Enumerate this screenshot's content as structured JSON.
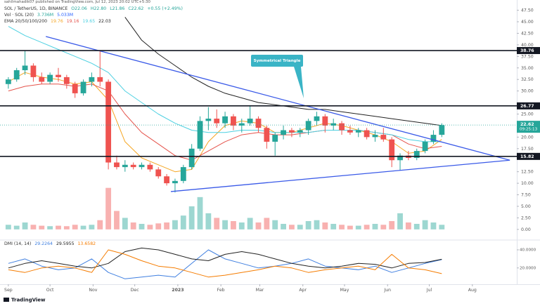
{
  "chart_data": {
    "type": "candlestick",
    "attribution": "sahilmahadik07 published on TradingView.com, Jul 12, 2023 20:02 UTC+5:30",
    "title": "SOL / TetherUS, 1D, BINANCE",
    "ohlc_legend": [
      "O22.06",
      "H22.80",
      "L21.86",
      "C22.62",
      "+0.55 (+2.49%)"
    ],
    "volume_legend": {
      "label": "Vol · SOL (20)",
      "values": [
        "3.736M",
        "5.033M"
      ]
    },
    "ema_legend": {
      "label": "EMA 20/50/100/200",
      "values": [
        "19.76",
        "19.16",
        "19.65",
        "22.03"
      ]
    },
    "logo": "TradingView",
    "xlim": [
      -6,
      366
    ],
    "xticks": [
      {
        "value": 0,
        "label": "Sep"
      },
      {
        "value": 30,
        "label": "Oct"
      },
      {
        "value": 61,
        "label": "Nov"
      },
      {
        "value": 91,
        "label": "Dec"
      },
      {
        "value": 122,
        "label": "2023"
      },
      {
        "value": 153,
        "label": "Feb"
      },
      {
        "value": 181,
        "label": "Mar"
      },
      {
        "value": 212,
        "label": "Apr"
      },
      {
        "value": 242,
        "label": "May"
      },
      {
        "value": 273,
        "label": "Jun"
      },
      {
        "value": 303,
        "label": "Jul"
      },
      {
        "value": 334,
        "label": "Aug"
      }
    ],
    "ylim": [
      -2,
      48.5
    ],
    "yticks": [
      {
        "value": 0,
        "label": "0.00"
      },
      {
        "value": 2.5,
        "label": "2.50"
      },
      {
        "value": 5,
        "label": "5.00"
      },
      {
        "value": 7.5,
        "label": "7.50"
      },
      {
        "value": 10,
        "label": "10.00"
      },
      {
        "value": 12.5,
        "label": "12.50"
      },
      {
        "value": 17.5,
        "label": "17.50"
      },
      {
        "value": 20,
        "label": "20.00"
      },
      {
        "value": 25,
        "label": "25.00"
      },
      {
        "value": 30,
        "label": "30.00"
      },
      {
        "value": 32.5,
        "label": "32.50"
      },
      {
        "value": 35,
        "label": "35.00"
      },
      {
        "value": 37.5,
        "label": "37.50"
      },
      {
        "value": 40,
        "label": "40.00"
      },
      {
        "value": 42.5,
        "label": "42.50"
      },
      {
        "value": 45,
        "label": "45.00"
      },
      {
        "value": 47.5,
        "label": "47.50"
      }
    ],
    "grid": false,
    "x": [
      0,
      6,
      12,
      18,
      24,
      30,
      36,
      42,
      48,
      54,
      60,
      66,
      72,
      78,
      84,
      90,
      96,
      102,
      108,
      114,
      120,
      126,
      132,
      138,
      144,
      150,
      156,
      162,
      168,
      174,
      180,
      186,
      192,
      198,
      204,
      210,
      216,
      222,
      228,
      234,
      240,
      246,
      252,
      258,
      264,
      270,
      276,
      282,
      288,
      294,
      300,
      306,
      312
    ],
    "open": [
      31.5,
      32.5,
      34.5,
      35.5,
      33,
      32,
      33.5,
      33,
      31.5,
      29.5,
      32,
      33,
      32,
      14.5,
      13.5,
      14,
      13.5,
      14,
      13,
      11.5,
      10,
      10.5,
      13.5,
      17.5,
      23.5,
      24,
      23,
      24.5,
      22.5,
      23,
      24,
      22,
      19,
      20.5,
      21.5,
      21,
      21.5,
      23.5,
      24.5,
      22.5,
      23,
      21.5,
      21,
      21.5,
      20,
      20.5,
      19.5,
      15,
      16,
      15.5,
      17,
      19,
      20.5
    ],
    "high": [
      33,
      35,
      38.7,
      36,
      34,
      34,
      35,
      33.5,
      32,
      32.5,
      34,
      38.7,
      32.5,
      16,
      15,
      14.5,
      14.5,
      14.5,
      13.5,
      12,
      11,
      14,
      18.5,
      24.5,
      26.5,
      26,
      25.5,
      25,
      24,
      26.7,
      24.5,
      22.5,
      21,
      22.5,
      22,
      22,
      24,
      25.5,
      25,
      24,
      23.5,
      22.5,
      22,
      22,
      21.5,
      22,
      20,
      16.5,
      17,
      17.5,
      19.5,
      21.5,
      23
    ],
    "low": [
      30.5,
      32,
      33.5,
      32,
      31.5,
      31.5,
      32,
      30.5,
      28.5,
      29,
      31,
      31,
      13,
      13,
      12.5,
      13,
      13,
      12.5,
      11,
      9.5,
      8,
      10,
      13,
      17,
      21.5,
      22,
      22,
      21.5,
      21,
      22.5,
      21,
      17.5,
      16,
      19.5,
      20,
      20,
      20.5,
      22.5,
      21,
      21.5,
      20.5,
      20.5,
      20,
      19.5,
      19,
      19,
      13.5,
      12.8,
      15,
      15,
      16.5,
      18.5,
      20
    ],
    "close": [
      32.5,
      34.5,
      35.5,
      33,
      32,
      33.5,
      33,
      31.5,
      29.5,
      32,
      33,
      32,
      14.5,
      13.5,
      14,
      13.5,
      14,
      13,
      11.5,
      10,
      10.5,
      13.5,
      17.5,
      23.5,
      24,
      23,
      24.5,
      22.5,
      23,
      24,
      22,
      19,
      20.5,
      21.5,
      21,
      21.5,
      23.5,
      24.5,
      22.5,
      23,
      21.5,
      21,
      21.5,
      20,
      20.5,
      19.5,
      15,
      16,
      15.5,
      17,
      19,
      20.5,
      22.6
    ],
    "up_color": "#26a69a",
    "down_color": "#ef5350",
    "volume": [
      1,
      0.8,
      1.5,
      1,
      0.8,
      0.7,
      0.8,
      0.7,
      1,
      0.8,
      1,
      2,
      9,
      4,
      2.5,
      1.5,
      1.2,
      1,
      1.3,
      1.5,
      2,
      3,
      5,
      7,
      3.5,
      2.5,
      2,
      1.8,
      1.5,
      2.5,
      1.5,
      2.5,
      2,
      1.2,
      1,
      1,
      1.8,
      2,
      1.5,
      1.2,
      1,
      0.8,
      0.8,
      1,
      1.2,
      1,
      1.8,
      3.5,
      1.5,
      1.2,
      2,
      1.5,
      1
    ],
    "ema_x": [
      0,
      12,
      24,
      36,
      48,
      60,
      72,
      84,
      96,
      108,
      120,
      132,
      144,
      156,
      168,
      180,
      192,
      204,
      216,
      228,
      240,
      252,
      264,
      276,
      288,
      300,
      312
    ],
    "ema": [
      {
        "color": "#f5a623",
        "values": [
          32,
          34,
          33,
          32.5,
          31.5,
          32,
          28,
          19,
          15.5,
          14,
          12.5,
          13,
          19,
          22.5,
          23.5,
          23,
          21,
          21,
          22,
          23,
          22.5,
          21.5,
          20.5,
          19,
          16.5,
          17,
          19.5
        ]
      },
      {
        "color": "#e5534b",
        "values": [
          30,
          31,
          31.5,
          31.5,
          31,
          31.5,
          30,
          25,
          21,
          18.5,
          16,
          15,
          17,
          19,
          20.5,
          21,
          20.5,
          20.5,
          21,
          21.5,
          21.5,
          21.5,
          21,
          20.5,
          18.5,
          17.5,
          18
        ]
      },
      {
        "color": "#4dd0e1",
        "values": [
          44,
          42,
          40.5,
          39,
          37.5,
          36,
          34,
          30,
          27.5,
          25,
          23,
          21.5,
          21,
          21,
          21.5,
          21.5,
          21,
          21,
          21,
          21.5,
          21.5,
          21.5,
          21,
          20.5,
          19.5,
          19,
          19
        ]
      },
      {
        "color": "#222222",
        "values": [
          null,
          null,
          null,
          null,
          null,
          null,
          null,
          46,
          41,
          38,
          35.5,
          33,
          31,
          29.5,
          28.5,
          27.5,
          27,
          26.5,
          26,
          26,
          25.5,
          25,
          24.5,
          24,
          23.5,
          23,
          22.5
        ]
      }
    ],
    "levels": [
      38.76,
      26.77,
      15.82
    ],
    "last_price": 22.62,
    "countdown": "09:25:13",
    "trendline_color": "#3a5ae8",
    "trendlines": [
      {
        "x": [
          27,
          361
        ],
        "y": [
          41.8,
          15.0
        ]
      },
      {
        "x": [
          117,
          361
        ],
        "y": [
          8.2,
          15.0
        ]
      }
    ],
    "annotation": "Symmetrical Triangle",
    "dmi": {
      "label": "DMI (14, 14)",
      "legend_values": [
        "29.2264",
        "29.5955",
        "13.6582"
      ],
      "ylim": [
        2,
        48.5
      ],
      "yticks": [
        {
          "value": 20,
          "label": "20.0000"
        },
        {
          "value": 40,
          "label": "40.0000"
        }
      ],
      "x": [
        0,
        12,
        24,
        36,
        48,
        60,
        72,
        84,
        96,
        108,
        120,
        132,
        144,
        156,
        168,
        180,
        192,
        204,
        216,
        228,
        240,
        252,
        264,
        276,
        288,
        300,
        312
      ],
      "series": [
        {
          "color": "#3f7fe0",
          "values": [
            25,
            30,
            22,
            18,
            20,
            30,
            15,
            8,
            10,
            12,
            10,
            25,
            40,
            30,
            25,
            20,
            22,
            25,
            30,
            22,
            20,
            18,
            22,
            15,
            20,
            25,
            29.2
          ]
        },
        {
          "color": "#222222",
          "values": [
            20,
            25,
            28,
            25,
            22,
            20,
            25,
            38,
            42,
            40,
            35,
            30,
            28,
            35,
            38,
            35,
            30,
            25,
            22,
            20,
            22,
            25,
            24,
            20,
            25,
            26,
            29.6
          ]
        },
        {
          "color": "#f57c00",
          "values": [
            18,
            15,
            20,
            22,
            20,
            15,
            40,
            35,
            28,
            22,
            20,
            15,
            10,
            12,
            15,
            18,
            22,
            20,
            15,
            18,
            20,
            22,
            18,
            35,
            20,
            18,
            13.7
          ]
        }
      ]
    }
  }
}
